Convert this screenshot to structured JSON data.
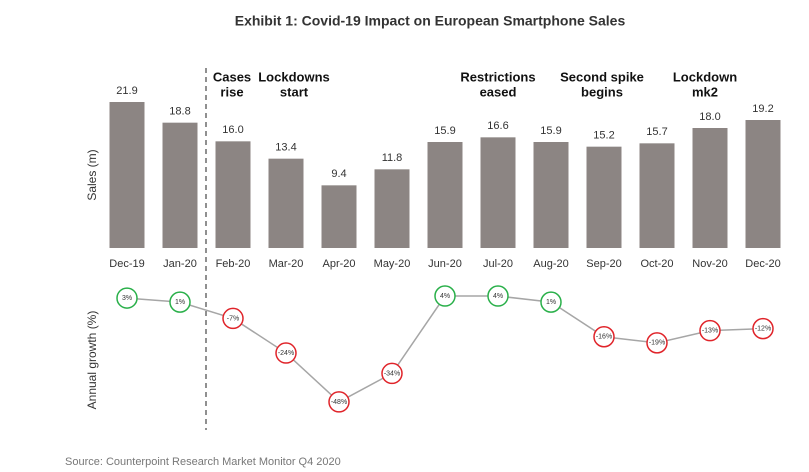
{
  "source": "Source: Counterpoint Research Market Monitor Q4 2020",
  "chart_data": [
    {
      "type": "bar",
      "title": "Exhibit 1: Covid-19 Impact on European Smartphone Sales",
      "ylabel": "Sales (m)",
      "categories": [
        "Dec-19",
        "Jan-20",
        "Feb-20",
        "Mar-20",
        "Apr-20",
        "May-20",
        "Jun-20",
        "Jul-20",
        "Aug-20",
        "Sep-20",
        "Oct-20",
        "Nov-20",
        "Dec-20"
      ],
      "values": [
        21.9,
        18.8,
        16.0,
        13.4,
        9.4,
        11.8,
        15.9,
        16.6,
        15.9,
        15.2,
        15.7,
        18.0,
        19.2
      ],
      "value_labels": [
        "21.9",
        "18.8",
        "16.0",
        "13.4",
        "9.4",
        "11.8",
        "15.9",
        "16.6",
        "15.9",
        "15.2",
        "15.7",
        "18.0",
        "19.2"
      ],
      "color": "#8c8583",
      "ylim": [
        0,
        24
      ],
      "annotations": [
        [
          "Cases",
          "rise"
        ],
        [
          "Lockdowns",
          "start"
        ],
        [
          "Restrictions",
          "eased"
        ],
        [
          "Second spike",
          "begins"
        ],
        [
          "Lockdown",
          "mk2"
        ]
      ]
    },
    {
      "type": "line",
      "ylabel": "Annual growth (%)",
      "values": [
        3,
        1,
        -7,
        -24,
        -48,
        -34,
        4,
        4,
        1,
        -16,
        -19,
        -13,
        -12
      ],
      "value_labels": [
        "3%",
        "1%",
        "-7%",
        "-24%",
        "-48%",
        "-34%",
        "4%",
        "4%",
        "1%",
        "-16%",
        "-19%",
        "-13%",
        "-12%"
      ],
      "color": "#a6a6a6",
      "positive_color": "#2ab04a",
      "negative_color": "#e0242a",
      "ylim": [
        -50,
        5
      ]
    }
  ]
}
